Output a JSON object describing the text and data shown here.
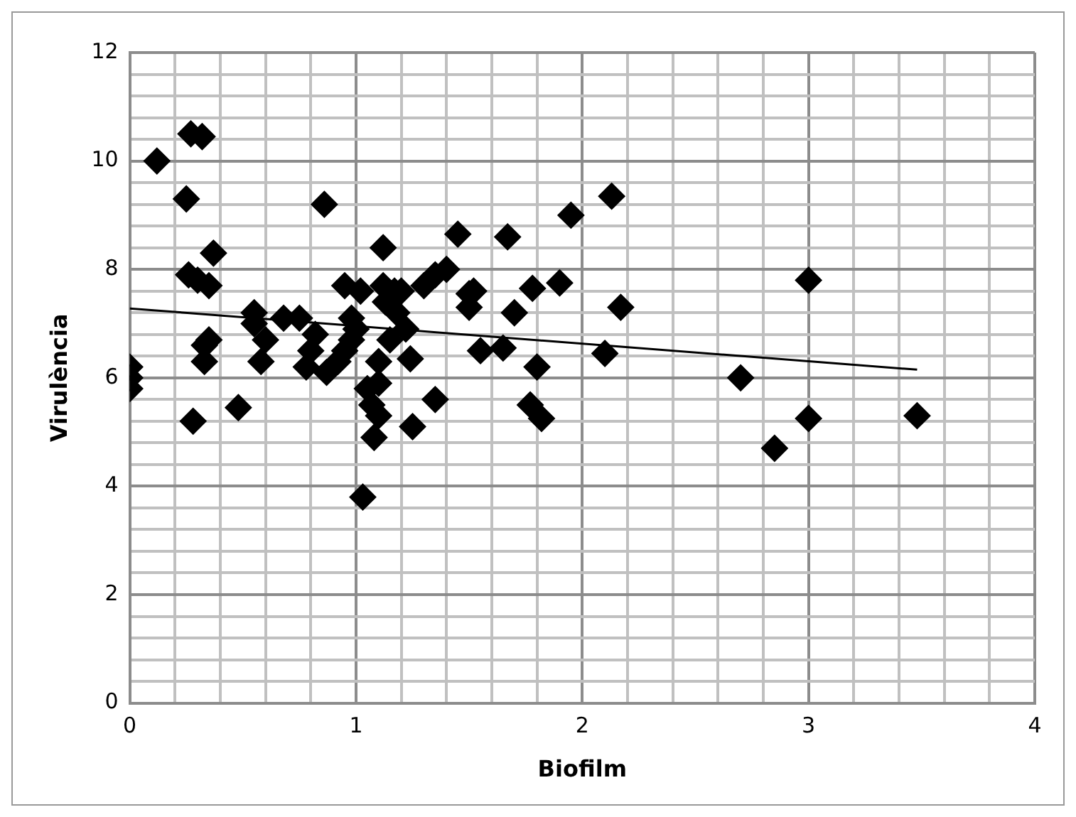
{
  "chart_data": {
    "type": "scatter",
    "xlabel": "Biofilm",
    "ylabel": "Virulència",
    "xlim": [
      0,
      4
    ],
    "ylim": [
      0,
      12
    ],
    "xticks": [
      0,
      {
        "value": 0.2,
        "label": null
      },
      {
        "value": 0.4,
        "label": null
      },
      {
        "value": 0.6,
        "label": null
      },
      {
        "value": 0.8,
        "label": null
      },
      1,
      {
        "value": 1.2,
        "label": null
      },
      {
        "value": 1.4,
        "label": null
      },
      {
        "value": 1.6,
        "label": null
      },
      {
        "value": 1.8,
        "label": null
      },
      2,
      {
        "value": 2.2,
        "label": null
      },
      {
        "value": 2.4,
        "label": null
      },
      {
        "value": 2.6,
        "label": null
      },
      {
        "value": 2.8,
        "label": null
      },
      3,
      {
        "value": 3.2,
        "label": null
      },
      {
        "value": 3.4,
        "label": null
      },
      {
        "value": 3.6,
        "label": null
      },
      {
        "value": 3.8,
        "label": null
      },
      4
    ],
    "yticks": [
      0,
      {
        "value": 0.4,
        "label": null
      },
      {
        "value": 0.8,
        "label": null
      },
      {
        "value": 1.2,
        "label": null
      },
      {
        "value": 1.6,
        "label": null
      },
      2,
      {
        "value": 2.4,
        "label": null
      },
      {
        "value": 2.8,
        "label": null
      },
      {
        "value": 3.2,
        "label": null
      },
      {
        "value": 3.6,
        "label": null
      },
      4,
      {
        "value": 4.4,
        "label": null
      },
      {
        "value": 4.8,
        "label": null
      },
      {
        "value": 5.2,
        "label": null
      },
      {
        "value": 5.6,
        "label": null
      },
      6,
      {
        "value": 6.4,
        "label": null
      },
      {
        "value": 6.8,
        "label": null
      },
      {
        "value": 7.2,
        "label": null
      },
      {
        "value": 7.6,
        "label": null
      },
      8,
      {
        "value": 8.4,
        "label": null
      },
      {
        "value": 8.8,
        "label": null
      },
      {
        "value": 9.2,
        "label": null
      },
      {
        "value": 9.6,
        "label": null
      },
      10,
      {
        "value": 10.4,
        "label": null
      },
      {
        "value": 10.8,
        "label": null
      },
      {
        "value": 11.2,
        "label": null
      },
      {
        "value": 11.6,
        "label": null
      },
      12
    ],
    "grid": true,
    "legend": false,
    "marker": "diamond",
    "series": [
      {
        "type": "scatter",
        "color": "#000000",
        "x": [
          0,
          0,
          0,
          0.12,
          0.25,
          0.26,
          0.27,
          0.32,
          0.28,
          0.3,
          0.35,
          0.37,
          0.33,
          0.35,
          0.33,
          0.48,
          0.55,
          0.55,
          0.6,
          0.58,
          0.68,
          0.75,
          0.78,
          0.8,
          0.82,
          0.86,
          0.87,
          0.92,
          0.95,
          0.95,
          0.98,
          0.98,
          1.0,
          1.02,
          1.03,
          1.05,
          1.07,
          1.08,
          1.1,
          1.1,
          1.1,
          1.12,
          1.12,
          1.13,
          1.15,
          1.17,
          1.18,
          1.2,
          1.22,
          1.24,
          1.25,
          1.3,
          1.35,
          1.35,
          1.4,
          1.45,
          1.5,
          1.5,
          1.52,
          1.55,
          1.65,
          1.67,
          1.7,
          1.77,
          1.78,
          1.8,
          1.82,
          1.9,
          1.95,
          2.1,
          2.13,
          2.17,
          2.7,
          2.85,
          3.0,
          3.0,
          3.48
        ],
        "values": [
          6.2,
          6.0,
          5.8,
          10.0,
          9.3,
          7.9,
          10.5,
          10.45,
          5.2,
          7.8,
          7.7,
          8.3,
          6.6,
          6.7,
          6.3,
          5.45,
          7.2,
          7.0,
          6.7,
          6.3,
          7.1,
          7.1,
          6.2,
          6.5,
          6.8,
          9.2,
          6.1,
          6.3,
          7.7,
          6.5,
          7.1,
          6.7,
          6.9,
          7.6,
          3.8,
          5.8,
          5.5,
          4.9,
          5.3,
          5.9,
          6.3,
          8.4,
          7.7,
          7.4,
          6.7,
          7.6,
          7.2,
          7.6,
          6.9,
          6.35,
          5.1,
          7.7,
          5.6,
          7.9,
          8.0,
          8.65,
          7.55,
          7.3,
          7.6,
          6.5,
          6.55,
          8.6,
          7.2,
          5.5,
          7.65,
          6.2,
          5.25,
          7.75,
          9.0,
          6.45,
          9.35,
          7.3,
          6.0,
          4.7,
          5.25,
          7.8,
          5.3
        ]
      },
      {
        "type": "line",
        "color": "#000000",
        "marker": "none",
        "x": [
          0,
          3.48
        ],
        "values": [
          7.28,
          6.15
        ]
      }
    ]
  }
}
